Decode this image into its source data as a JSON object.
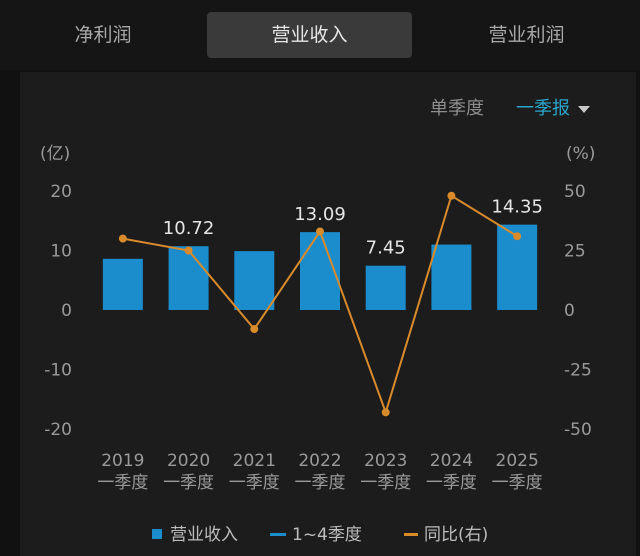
{
  "tabs": [
    {
      "label": "净利润",
      "active": false
    },
    {
      "label": "营业收入",
      "active": true
    },
    {
      "label": "营业利润",
      "active": false
    }
  ],
  "toolbar": {
    "mode_label": "单季度",
    "period_value": "一季报"
  },
  "legend": {
    "bar_label": "营业收入",
    "line_label": "1~4季度",
    "yoy_label": "同比(右)"
  },
  "colors": {
    "bar": "#1b8ccc",
    "yoy": "#d98b2b",
    "accent": "#2aa6cc"
  },
  "chart_data": {
    "type": "bar",
    "categories": [
      "2019",
      "2020",
      "2021",
      "2022",
      "2023",
      "2024",
      "2025"
    ],
    "category_sublabel": "一季度",
    "series": [
      {
        "name": "营业收入",
        "type": "bar",
        "axis": "left",
        "values": [
          8.6,
          10.72,
          9.9,
          13.09,
          7.45,
          11.0,
          14.35
        ]
      },
      {
        "name": "同比(右)",
        "type": "line",
        "axis": "right",
        "values": [
          30,
          25,
          -8,
          33,
          -43,
          48,
          31
        ]
      }
    ],
    "data_labels": {
      "1": "10.72",
      "3": "13.09",
      "4": "7.45",
      "6": "14.35"
    },
    "left_axis": {
      "unit": "(亿)",
      "ticks": [
        20,
        10,
        0,
        -10,
        -20
      ],
      "range": [
        -20,
        20
      ]
    },
    "right_axis": {
      "unit": "(%)",
      "ticks": [
        50,
        25,
        0,
        -25,
        -50
      ],
      "range": [
        -50,
        50
      ]
    },
    "grid": false,
    "legend_position": "bottom"
  }
}
